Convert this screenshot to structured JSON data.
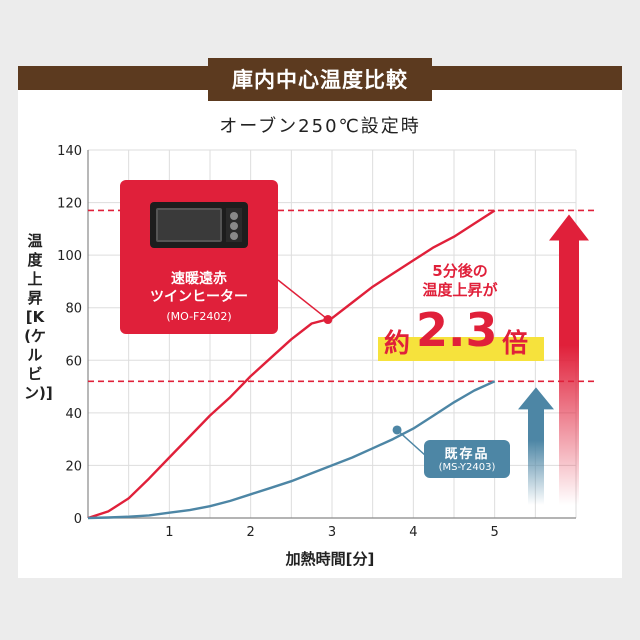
{
  "header": {
    "title": "庫内中心温度比較"
  },
  "colors": {
    "brown": "#5c3a1f",
    "red": "#e0203a",
    "blue": "#4d86a5",
    "highlight": "#f6e23c"
  },
  "chart_data": {
    "type": "line",
    "title": "オーブン250℃設定時",
    "xlabel": "加熱時間[分]",
    "ylabel": "温度上昇[K(ケルビン)]",
    "xlim": [
      0,
      6
    ],
    "ylim": [
      0,
      140
    ],
    "xticks": [
      1,
      2,
      3,
      4,
      5
    ],
    "yticks": [
      0,
      20,
      40,
      60,
      80,
      100,
      120,
      140
    ],
    "grid": true,
    "series": [
      {
        "name": "速暖遠赤ツインヒーター",
        "color": "#e0203a",
        "x": [
          0,
          0.25,
          0.5,
          0.75,
          1,
          1.25,
          1.5,
          1.75,
          2,
          2.25,
          2.5,
          2.75,
          3,
          3.25,
          3.5,
          3.75,
          4,
          4.25,
          4.5,
          4.75,
          5
        ],
        "y": [
          0,
          2.5,
          7.5,
          15,
          23,
          31,
          39,
          46,
          54,
          61,
          68,
          74,
          76,
          82,
          88,
          93,
          98,
          103,
          107,
          112,
          117
        ]
      },
      {
        "name": "既存品",
        "color": "#4d86a5",
        "x": [
          0,
          0.25,
          0.5,
          0.75,
          1,
          1.25,
          1.5,
          1.75,
          2,
          2.25,
          2.5,
          2.75,
          3,
          3.25,
          3.5,
          3.75,
          4,
          4.25,
          4.5,
          4.75,
          5
        ],
        "y": [
          0,
          0.2,
          0.5,
          1,
          2,
          3,
          4.5,
          6.5,
          9,
          11.5,
          14,
          17,
          20,
          23,
          26.5,
          30,
          34,
          39,
          44,
          48.5,
          52
        ]
      }
    ],
    "reference_lines": [
      117,
      52
    ],
    "annotations": {
      "product_name": "速暖遠赤\nツインヒーター",
      "product_model": "(MO-F2402)",
      "product_point": [
        2.95,
        75.5
      ],
      "existing_name": "既存品",
      "existing_model": "(MS-Y2403)",
      "existing_point": [
        3.8,
        33.5
      ],
      "callout": "5分後の\n温度上昇が",
      "ratio_prefix": "約",
      "ratio_value": "2.3",
      "ratio_suffix": "倍"
    }
  }
}
